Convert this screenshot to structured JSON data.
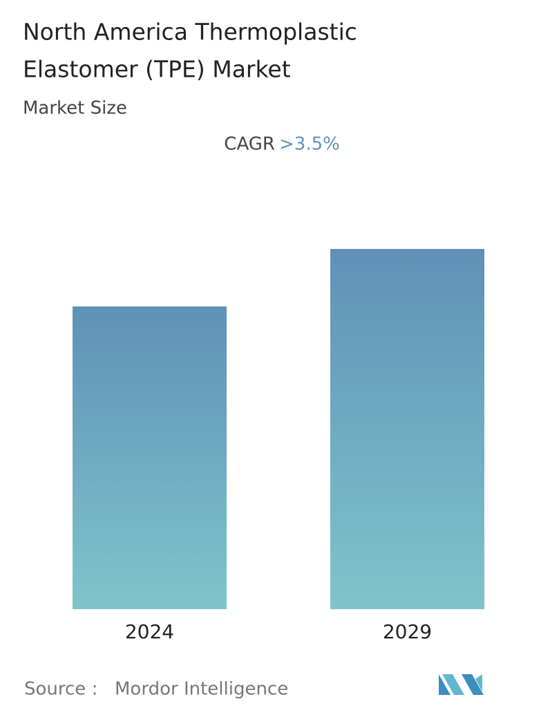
{
  "chart_data": {
    "type": "bar",
    "title": [
      "North America Thermoplastic",
      "Elastomer (TPE) Market"
    ],
    "subtitle": "Market Size",
    "cagr_label": "CAGR",
    "cagr_value": ">3.5%",
    "categories": [
      "2024",
      "2029"
    ],
    "values": [
      100,
      119
    ],
    "color_top": "#5f91b8",
    "color_bottom": "#80c4ca",
    "source_label": "Source :",
    "source": "Mordor Intelligence"
  }
}
